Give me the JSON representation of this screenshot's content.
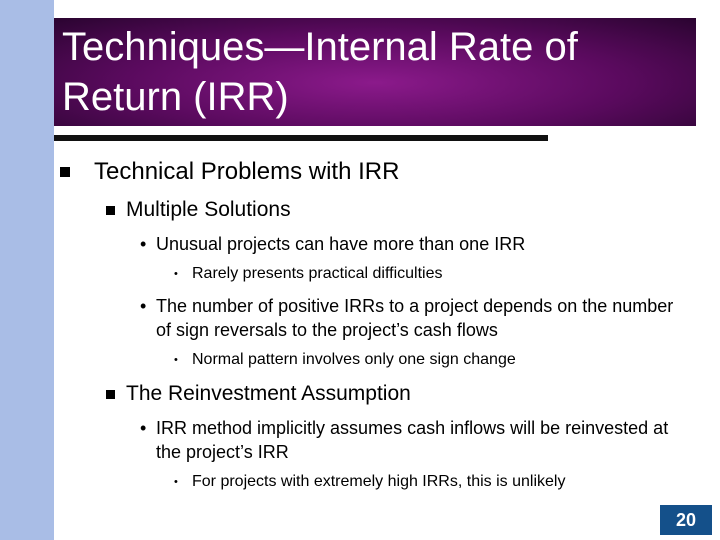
{
  "title": "Techniques—Internal Rate of Return (IRR)",
  "items": [
    {
      "text": "Technical Problems with IRR",
      "level": 1
    },
    {
      "text": "Multiple Solutions",
      "level": 2
    },
    {
      "text": "Unusual projects can have more than one IRR",
      "level": 3
    },
    {
      "text": "Rarely presents practical difficulties",
      "level": 4
    },
    {
      "text": "The number of positive IRRs to a project depends on the number of sign reversals to the project’s cash flows",
      "level": 3
    },
    {
      "text": "Normal pattern involves only one sign change",
      "level": 4
    },
    {
      "text": "The Reinvestment Assumption",
      "level": 2
    },
    {
      "text": "IRR method implicitly assumes cash inflows will be reinvested at the project’s IRR",
      "level": 3
    },
    {
      "text": "For projects with extremely high IRRs, this is unlikely",
      "level": 4
    }
  ],
  "page_number": "20"
}
